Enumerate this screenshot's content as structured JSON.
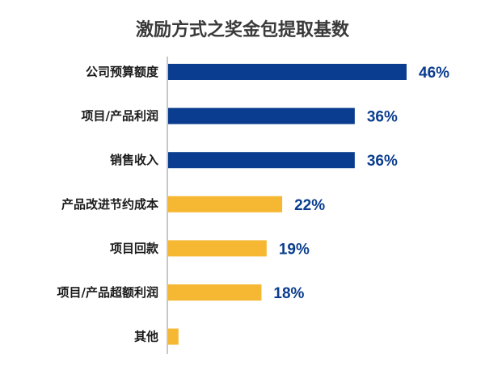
{
  "chart_data": {
    "type": "bar",
    "orientation": "horizontal",
    "title": "激励方式之奖金包提取基数",
    "categories": [
      "公司预算额度",
      "项目/产品利润",
      "销售收入",
      "产品改进节约成本",
      "项目回款",
      "项目/产品超额利润",
      "其他"
    ],
    "values": [
      46,
      36,
      36,
      22,
      19,
      18,
      2
    ],
    "value_labels": [
      "46%",
      "36%",
      "36%",
      "22%",
      "19%",
      "18%",
      ""
    ],
    "bar_colors": [
      "#0a3d8f",
      "#0a3d8f",
      "#0a3d8f",
      "#f6b732",
      "#f6b732",
      "#f6b732",
      "#f6b732"
    ],
    "label_colors": [
      "#0a3d8f",
      "#0a3d8f",
      "#0a3d8f",
      "#0a3d8f",
      "#0a3d8f",
      "#0a3d8f",
      "#0a3d8f"
    ],
    "axis_color": "#c8c8c8",
    "xlim": [
      0,
      46
    ],
    "grid": false,
    "legend": "none"
  }
}
